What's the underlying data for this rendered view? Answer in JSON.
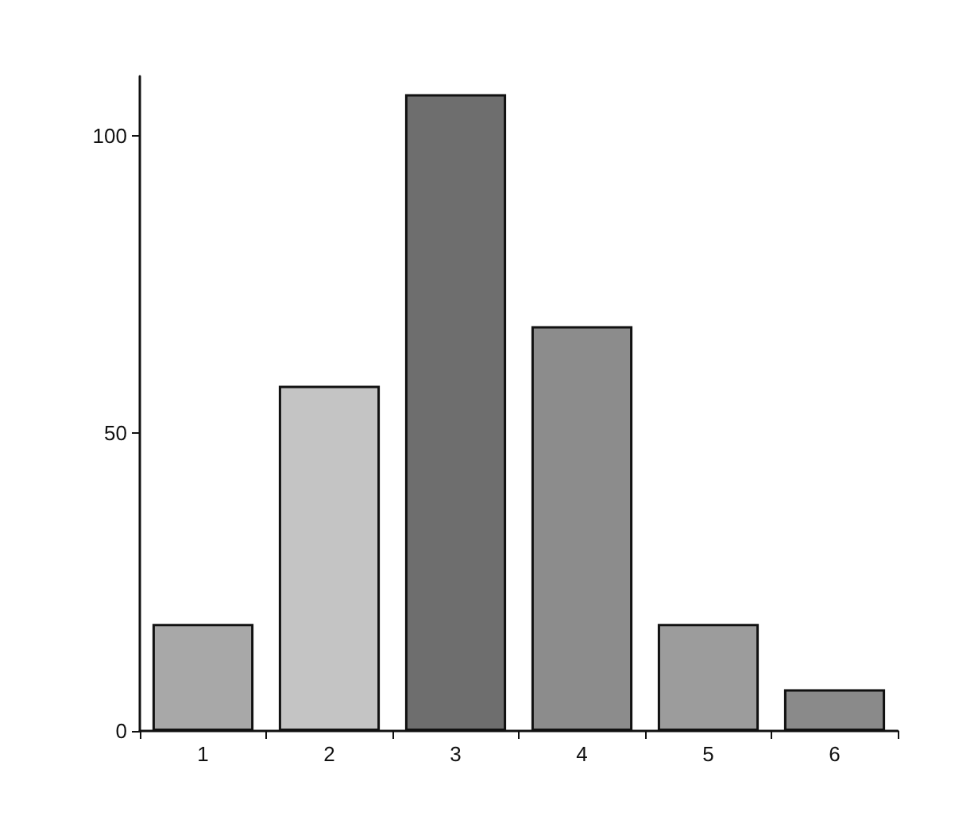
{
  "chart_data": {
    "type": "bar",
    "categories": [
      "1",
      "2",
      "3",
      "4",
      "5",
      "6"
    ],
    "values": [
      18,
      58,
      107,
      68,
      18,
      7
    ],
    "colors": [
      "#a8a8a8",
      "#c4c4c4",
      "#6e6e6e",
      "#8c8c8c",
      "#9c9c9c",
      "#8a8a8a"
    ],
    "ylim": [
      0,
      110
    ],
    "yticks": [
      0,
      50,
      100
    ],
    "grid": false
  }
}
